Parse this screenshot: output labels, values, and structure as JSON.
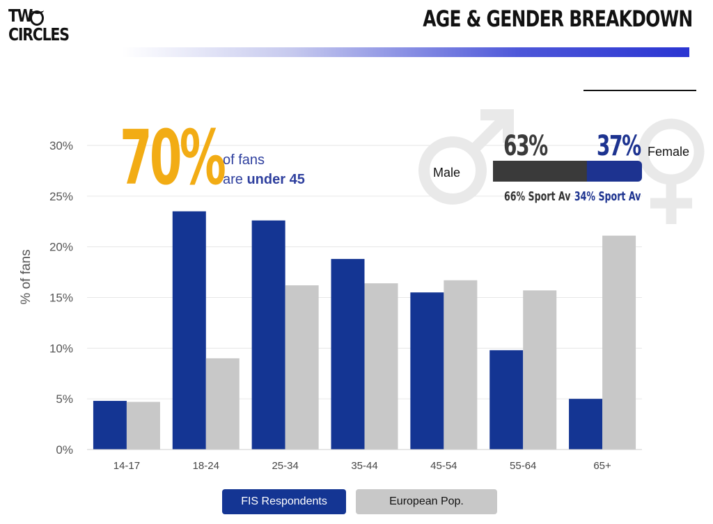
{
  "logo": {
    "line1": "TW",
    "line2": "CIRCLES"
  },
  "header": {
    "title": "AGE & GENDER BREAKDOWN"
  },
  "callout": {
    "big": "70%",
    "line1": "of fans",
    "line2_prefix": "are ",
    "line2_bold": "under 45"
  },
  "gender": {
    "male_label": "Male",
    "female_label": "Female",
    "male_pct": "63%",
    "female_pct": "37%",
    "male_share": 0.63,
    "male_sport_av": "66% Sport Av",
    "female_sport_av": "34% Sport Av",
    "colors": {
      "male": "#3a3a3a",
      "female": "#1d3390"
    }
  },
  "legend": {
    "fis": "FIS Respondents",
    "eu": "European Pop."
  },
  "chart_data": {
    "type": "bar",
    "categories": [
      "14-17",
      "18-24",
      "25-34",
      "35-44",
      "45-54",
      "55-64",
      "65+"
    ],
    "series": [
      {
        "name": "FIS Respondents",
        "color": "#143593",
        "values": [
          4.8,
          23.5,
          22.6,
          18.8,
          15.5,
          9.8,
          5.0
        ]
      },
      {
        "name": "European Pop.",
        "color": "#c8c8c8",
        "values": [
          4.7,
          9.0,
          16.2,
          16.4,
          16.7,
          15.7,
          21.1
        ]
      }
    ],
    "ylabel": "% of fans",
    "ylim": [
      0,
      30
    ],
    "yticks": [
      0,
      5,
      10,
      15,
      20,
      25,
      30
    ],
    "ytick_labels": [
      "0%",
      "5%",
      "10%",
      "15%",
      "20%",
      "25%",
      "30%"
    ],
    "grid": true,
    "legend_position": "bottom"
  }
}
